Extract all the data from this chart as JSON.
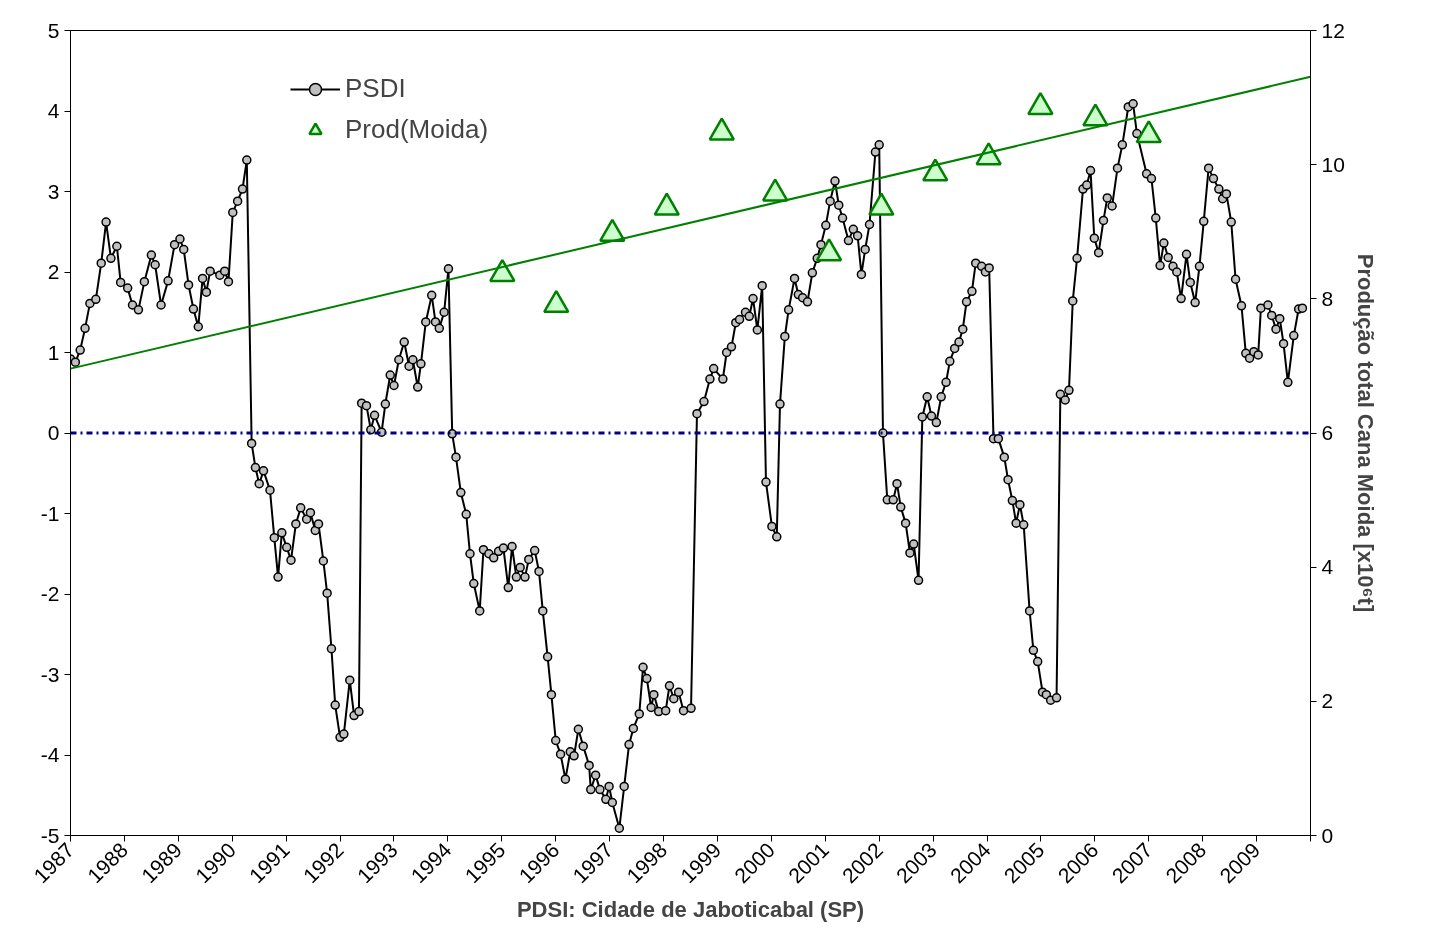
{
  "chart_data": {
    "type": "line",
    "xlabel": "PDSI: Cidade de Jaboticabal (SP)",
    "y2label": "Produção total Cana Moida [x10⁶t]",
    "xlim": [
      1987,
      2010
    ],
    "xticks": [
      1987,
      1988,
      1989,
      1990,
      1991,
      1992,
      1993,
      1994,
      1995,
      1996,
      1997,
      1998,
      1999,
      2000,
      2001,
      2002,
      2003,
      2004,
      2005,
      2006,
      2007,
      2008,
      2009,
      {
        "value": 2010,
        "label": null
      }
    ],
    "ylim": [
      -5,
      5
    ],
    "yticks": [
      -5,
      -4,
      -3,
      -2,
      -1,
      0,
      1,
      2,
      3,
      4,
      5
    ],
    "y2lim": [
      0,
      12
    ],
    "y2ticks": [
      0,
      2,
      4,
      6,
      8,
      10,
      12
    ],
    "grid": false,
    "legend": "top left",
    "ref_lines": [
      {
        "axis": "y",
        "value": 0,
        "color": "#000080",
        "line_style": "dashdot"
      }
    ],
    "series": [
      {
        "name": "PSDI",
        "color": "#000000",
        "marker": "circle",
        "x": [
          1987.0,
          1987.09,
          1987.18,
          1987.27,
          1987.36,
          1987.47,
          1987.57,
          1987.66,
          1987.75,
          1987.86,
          1987.93,
          1988.06,
          1988.15,
          1988.26,
          1988.37,
          1988.5,
          1988.57,
          1988.68,
          1988.81,
          1988.93,
          1989.03,
          1989.1,
          1989.19,
          1989.28,
          1989.37,
          1989.45,
          1989.52,
          1989.59,
          1989.77,
          1989.86,
          1989.93,
          1990.01,
          1990.1,
          1990.19,
          1990.27,
          1990.36,
          1990.43,
          1990.5,
          1990.58,
          1990.7,
          1990.78,
          1990.85,
          1990.92,
          1991.01,
          1991.09,
          1991.18,
          1991.27,
          1991.38,
          1991.45,
          1991.54,
          1991.6,
          1991.69,
          1991.76,
          1991.84,
          1991.91,
          1992.0,
          1992.07,
          1992.18,
          1992.26,
          1992.35,
          1992.4,
          1992.49,
          1992.57,
          1992.64,
          1992.77,
          1992.84,
          1992.93,
          1993.0,
          1993.09,
          1993.19,
          1993.28,
          1993.35,
          1993.44,
          1993.5,
          1993.59,
          1993.7,
          1993.77,
          1993.84,
          1993.93,
          1994.01,
          1994.08,
          1994.15,
          1994.24,
          1994.34,
          1994.41,
          1994.48,
          1994.59,
          1994.66,
          1994.76,
          1994.85,
          1994.94,
          1995.03,
          1995.12,
          1995.19,
          1995.27,
          1995.34,
          1995.43,
          1995.5,
          1995.61,
          1995.69,
          1995.76,
          1995.85,
          1995.92,
          1996.0,
          1996.09,
          1996.18,
          1996.27,
          1996.34,
          1996.42,
          1996.51,
          1996.62,
          1996.65,
          1996.74,
          1996.82,
          1996.93,
          1996.99,
          1997.05,
          1997.18,
          1997.27,
          1997.36,
          1997.44,
          1997.55,
          1997.62,
          1997.69,
          1997.77,
          1997.82,
          1997.91,
          1998.04,
          1998.11,
          1998.19,
          1998.28,
          1998.37,
          1998.51,
          1998.62,
          1998.75,
          1998.86,
          1998.93,
          1999.1,
          1999.17,
          1999.26,
          1999.34,
          1999.41,
          1999.52,
          1999.59,
          1999.66,
          1999.74,
          1999.83,
          1999.9,
          2000.01,
          2000.1,
          2000.16,
          2000.25,
          2000.32,
          2000.43,
          2000.5,
          2000.58,
          2000.67,
          2000.76,
          2000.85,
          2000.92,
          2001.01,
          2001.09,
          2001.18,
          2001.25,
          2001.32,
          2001.43,
          2001.52,
          2001.6,
          2001.67,
          2001.74,
          2001.82,
          2001.93,
          2002.0,
          2002.07,
          2002.15,
          2002.26,
          2002.33,
          2002.4,
          2002.49,
          2002.57,
          2002.64,
          2002.73,
          2002.8,
          2002.89,
          2002.97,
          2003.06,
          2003.15,
          2003.24,
          2003.31,
          2003.4,
          2003.48,
          2003.55,
          2003.62,
          2003.72,
          2003.79,
          2003.9,
          2003.97,
          2004.04,
          2004.12,
          2004.21,
          2004.32,
          2004.39,
          2004.47,
          2004.54,
          2004.61,
          2004.68,
          2004.79,
          2004.86,
          2004.94,
          2005.03,
          2005.1,
          2005.18,
          2005.29,
          2005.36,
          2005.45,
          2005.52,
          2005.59,
          2005.67,
          2005.78,
          2005.85,
          2005.92,
          2005.99,
          2006.07,
          2006.16,
          2006.23,
          2006.32,
          2006.42,
          2006.51,
          2006.62,
          2006.71,
          2006.78,
          2006.96,
          2007.05,
          2007.13,
          2007.21,
          2007.28,
          2007.36,
          2007.45,
          2007.52,
          2007.6,
          2007.7,
          2007.77,
          2007.86,
          2007.94,
          2008.02,
          2008.11,
          2008.2,
          2008.3,
          2008.37,
          2008.44,
          2008.53,
          2008.61,
          2008.72,
          2008.8,
          2008.87,
          2008.95,
          2009.03,
          2009.08,
          2009.21,
          2009.28,
          2009.36,
          2009.43,
          2009.5,
          2009.58,
          2009.69,
          2009.78,
          2009.85
        ],
        "values": [
          0.92,
          0.88,
          1.03,
          1.3,
          1.61,
          1.66,
          2.11,
          2.62,
          2.17,
          2.32,
          1.87,
          1.8,
          1.59,
          1.53,
          1.88,
          2.21,
          2.09,
          1.59,
          1.89,
          2.34,
          2.41,
          2.28,
          1.84,
          1.54,
          1.32,
          1.92,
          1.75,
          2.01,
          1.96,
          2.01,
          1.88,
          2.74,
          2.88,
          3.03,
          3.39,
          -0.13,
          -0.43,
          -0.63,
          -0.47,
          -0.71,
          -1.3,
          -1.79,
          -1.24,
          -1.42,
          -1.58,
          -1.13,
          -0.93,
          -1.07,
          -0.99,
          -1.21,
          -1.13,
          -1.59,
          -1.99,
          -2.68,
          -3.38,
          -3.78,
          -3.74,
          -3.07,
          -3.51,
          -3.46,
          0.37,
          0.34,
          0.04,
          0.22,
          0.01,
          0.36,
          0.72,
          0.59,
          0.91,
          1.13,
          0.83,
          0.91,
          0.57,
          0.86,
          1.38,
          1.71,
          1.38,
          1.3,
          1.5,
          2.04,
          -0.01,
          -0.3,
          -0.74,
          -1.01,
          -1.5,
          -1.87,
          -2.21,
          -1.45,
          -1.5,
          -1.55,
          -1.47,
          -1.43,
          -1.92,
          -1.41,
          -1.79,
          -1.67,
          -1.79,
          -1.57,
          -1.46,
          -1.72,
          -2.21,
          -2.78,
          -3.25,
          -3.82,
          -3.99,
          -4.3,
          -3.96,
          -4.01,
          -3.68,
          -3.89,
          -4.13,
          -4.43,
          -4.25,
          -4.43,
          -4.55,
          -4.39,
          -4.59,
          -4.91,
          -4.39,
          -3.87,
          -3.67,
          -3.49,
          -2.91,
          -3.05,
          -3.41,
          -3.25,
          -3.46,
          -3.45,
          -3.14,
          -3.3,
          -3.22,
          -3.45,
          -3.42,
          0.24,
          0.39,
          0.67,
          0.8,
          0.67,
          1.0,
          1.07,
          1.37,
          1.41,
          1.5,
          1.45,
          1.67,
          1.28,
          1.83,
          -0.61,
          -1.16,
          -1.29,
          0.36,
          1.2,
          1.53,
          1.92,
          1.72,
          1.68,
          1.63,
          1.99,
          2.17,
          2.34,
          2.58,
          2.88,
          3.13,
          2.83,
          2.67,
          2.39,
          2.53,
          2.45,
          1.97,
          2.28,
          2.59,
          3.49,
          3.58,
          0.0,
          -0.83,
          -0.83,
          -0.63,
          -0.92,
          -1.12,
          -1.49,
          -1.38,
          -1.83,
          0.2,
          0.45,
          0.21,
          0.13,
          0.45,
          0.63,
          0.89,
          1.05,
          1.13,
          1.29,
          1.63,
          1.76,
          2.11,
          2.07,
          2.0,
          2.05,
          -0.07,
          -0.07,
          -0.3,
          -0.58,
          -0.84,
          -1.12,
          -0.89,
          -1.14,
          -2.21,
          -2.7,
          -2.84,
          -3.22,
          -3.25,
          -3.32,
          -3.29,
          0.48,
          0.41,
          0.53,
          1.64,
          2.17,
          3.03,
          3.08,
          3.26,
          2.42,
          2.24,
          2.64,
          2.92,
          2.82,
          3.29,
          3.58,
          4.05,
          4.09,
          3.72,
          3.22,
          3.16,
          2.67,
          2.08,
          2.36,
          2.18,
          2.07,
          2.0,
          1.67,
          2.22,
          1.87,
          1.62,
          2.07,
          2.63,
          3.29,
          3.16,
          3.03,
          2.91,
          2.97,
          2.62,
          1.91,
          1.58,
          0.99,
          0.93,
          1.01,
          0.97,
          1.55,
          1.59,
          1.46,
          1.29,
          1.42,
          1.11,
          0.63,
          1.21,
          1.54,
          1.55
        ]
      },
      {
        "name": "Prod(Moida)",
        "type": "scatter",
        "axis": "y2",
        "color": "#ccffcc",
        "marker": "triangle",
        "x": [
          1995.01,
          1996.01,
          1997.05,
          1998.06,
          1999.08,
          2000.07,
          2001.07,
          2002.04,
          2003.04,
          2004.03,
          2004.99,
          2006.01,
          2007.0
        ],
        "values": [
          8.37,
          7.91,
          8.97,
          9.36,
          10.48,
          9.57,
          8.68,
          9.36,
          9.87,
          10.11,
          10.86,
          10.69,
          10.44
        ]
      },
      {
        "type": "line",
        "axis": "y2",
        "color": "#008000",
        "marker": "none",
        "x": [
          1987,
          2010
        ],
        "values": [
          6.96,
          11.31
        ]
      }
    ]
  }
}
